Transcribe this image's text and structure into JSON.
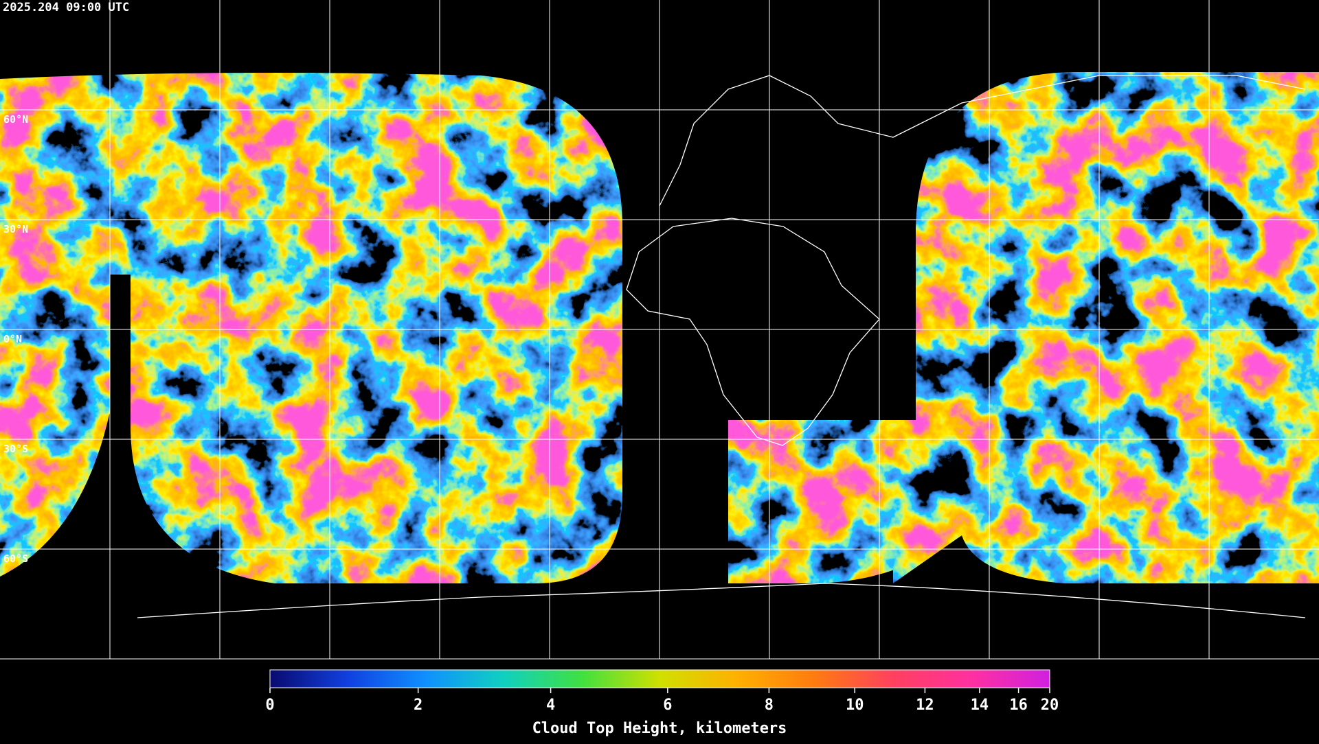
{
  "timestamp": "2025.204 09:00 UTC",
  "latitude_labels": [
    "60°N",
    "30°N",
    "0°N",
    "30°S",
    "60°S"
  ],
  "colorbar": {
    "title": "Cloud Top Height, kilometers",
    "range": [
      0,
      20
    ],
    "ticks": [
      0,
      2,
      4,
      6,
      8,
      10,
      12,
      14,
      16,
      20
    ],
    "colors": [
      "#0a0a6e",
      "#1040e0",
      "#1090ff",
      "#10d0c0",
      "#40e040",
      "#d0e000",
      "#ffb000",
      "#ff7a10",
      "#ff4060",
      "#ff30a0",
      "#d020e0"
    ]
  }
}
